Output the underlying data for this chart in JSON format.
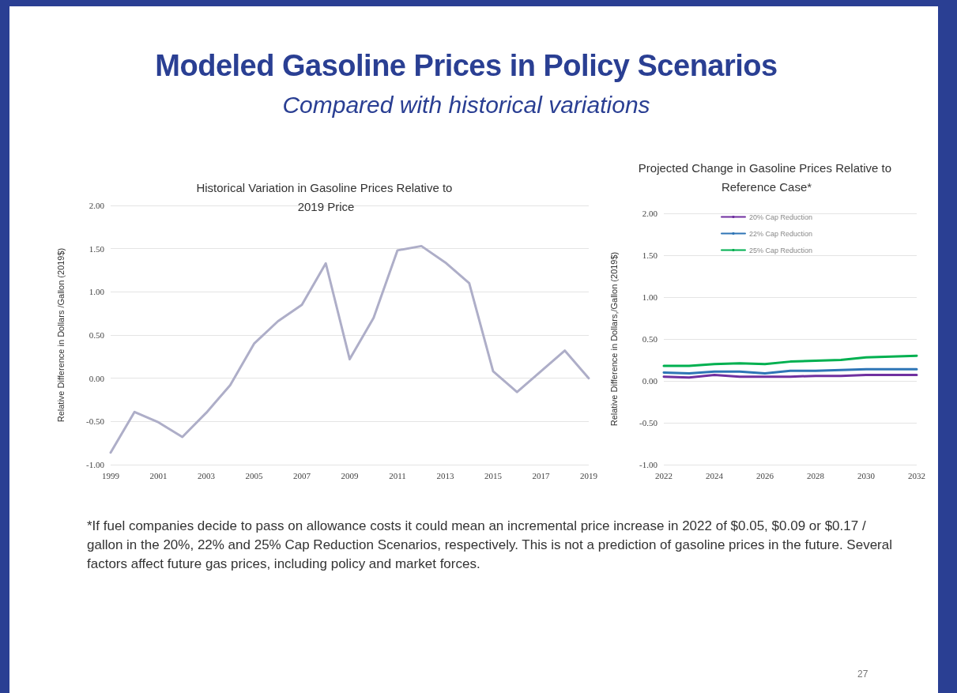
{
  "chart_data": [
    {
      "type": "other",
      "title": "Modeled Gasoline Prices in Policy Scenarios",
      "subtitle": "Compared with historical variations",
      "annotations": [
        "*If fuel companies decide to pass on allowance costs it could mean an incremental price increase in 2022 of $0.05, $0.09 or $0.17 / gallon in the 20%, 22% and 25% Cap Reduction Scenarios, respectively.  This is not a prediction of gasoline prices in the future.  Several factors affect future gas prices, including policy and market forces.",
        "27"
      ]
    },
    {
      "type": "line",
      "title": "Historical Variation in Gasoline Prices Relative to 2019 Price",
      "ylabel": "Relative Difference in Dollars /Gallon (2019$)",
      "categories": [
        "1999",
        null,
        "2001",
        null,
        "2003",
        null,
        "2005",
        null,
        "2007",
        null,
        "2009",
        null,
        "2011",
        null,
        "2013",
        null,
        "2015",
        null,
        "2017",
        null,
        "2019"
      ],
      "series": [
        {
          "color": "#aeaec8",
          "values": [
            -0.86,
            -0.39,
            -0.51,
            -0.68,
            -0.4,
            -0.08,
            0.4,
            0.66,
            0.85,
            1.33,
            0.22,
            0.7,
            1.48,
            1.53,
            1.34,
            1.1,
            0.08,
            -0.16,
            0.08,
            0.32,
            0.0
          ]
        }
      ],
      "ylim": [
        -1,
        2
      ],
      "yticks": [
        {
          "value": -1,
          "label": "-1.00"
        },
        {
          "value": -0.5,
          "label": "-0.50"
        },
        {
          "value": 0,
          "label": "0.00"
        },
        {
          "value": 0.5,
          "label": "0.50"
        },
        {
          "value": 1,
          "label": "1.00"
        },
        {
          "value": 1.5,
          "label": "1.50"
        },
        {
          "value": 2,
          "label": "2.00"
        }
      ],
      "grid": "y",
      "legend": false,
      "marker": "none",
      "line_style": "solid"
    },
    {
      "type": "line",
      "title": "Projected Change in Gasoline Prices Relative to Reference Case*",
      "ylabel": "Relative Difference in Dollars,/Gallon (2019$)",
      "categories": [
        "2022",
        null,
        "2024",
        null,
        "2026",
        null,
        "2028",
        null,
        "2030",
        null,
        "2032"
      ],
      "series": [
        {
          "name": "20% Cap Reduction",
          "color": "#7030a0",
          "values": [
            0.05,
            0.04,
            0.07,
            0.05,
            0.05,
            0.05,
            0.06,
            0.06,
            0.07,
            0.07,
            0.07
          ]
        },
        {
          "name": "22% Cap Reduction",
          "color": "#2e75b6",
          "values": [
            0.1,
            0.09,
            0.11,
            0.11,
            0.09,
            0.12,
            0.12,
            0.13,
            0.14,
            0.14,
            0.14
          ]
        },
        {
          "name": "25% Cap Reduction",
          "color": "#00b050",
          "values": [
            0.18,
            0.18,
            0.2,
            0.21,
            0.2,
            0.23,
            0.24,
            0.25,
            0.28,
            0.29,
            0.3
          ]
        }
      ],
      "ylim": [
        -1,
        2
      ],
      "yticks": [
        {
          "value": -1,
          "label": "-1.00"
        },
        {
          "value": -0.5,
          "label": "-0.50"
        },
        {
          "value": 0,
          "label": "0.00"
        },
        {
          "value": 0.5,
          "label": "0.50"
        },
        {
          "value": 1,
          "label": "1.00"
        },
        {
          "value": 1.5,
          "label": "1.50"
        },
        {
          "value": 2,
          "label": "2.00"
        }
      ],
      "grid": "y",
      "legend": "top",
      "marker": "none",
      "line_style": "solid"
    }
  ]
}
